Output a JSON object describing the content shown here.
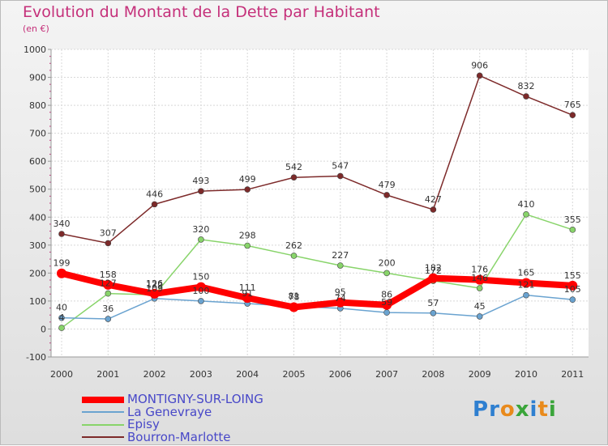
{
  "chart_data": {
    "type": "line",
    "title": "Evolution du Montant de la Dette par Habitant",
    "unit_label": "(en €)",
    "x": [
      "2000",
      "2001",
      "2002",
      "2003",
      "2004",
      "2005",
      "2006",
      "2007",
      "2008",
      "2009",
      "2010",
      "2011"
    ],
    "ylim": [
      -100,
      1000
    ],
    "yticks": [
      "-100",
      "0",
      "100",
      "200",
      "300",
      "400",
      "500",
      "600",
      "700",
      "800",
      "900",
      "1000"
    ],
    "grid": true,
    "legend_position": "bottom-left",
    "series": [
      {
        "name": "MONTIGNY-SUR-LOING",
        "color": "#ff0000",
        "values": [
          199,
          158,
          126,
          150,
          111,
          78,
          95,
          86,
          182,
          176,
          165,
          155
        ],
        "labels": [
          "199",
          "158",
          "126",
          "150",
          "111",
          "78",
          "95",
          "86",
          "182",
          "176",
          "165",
          "155"
        ]
      },
      {
        "name": "La Genevraye",
        "color": "#6aa3d0",
        "values": [
          40,
          36,
          109,
          100,
          91,
          81,
          74,
          59,
          57,
          45,
          121,
          105
        ],
        "labels": [
          "40",
          "36",
          "109",
          "100",
          "91",
          "81",
          "74",
          "59",
          "57",
          "45",
          "121",
          "105"
        ]
      },
      {
        "name": "Episy",
        "color": "#88d46a",
        "values": [
          4,
          127,
          122,
          320,
          298,
          262,
          227,
          200,
          172,
          146,
          410,
          355
        ],
        "labels": [
          "4",
          "127",
          "122",
          "320",
          "298",
          "262",
          "227",
          "200",
          "172",
          "146",
          "410",
          "355"
        ]
      },
      {
        "name": "Bourron-Marlotte",
        "color": "#7d2a2a",
        "values": [
          340,
          307,
          446,
          493,
          499,
          542,
          547,
          479,
          427,
          906,
          832,
          765
        ],
        "labels": [
          "340",
          "307",
          "446",
          "493",
          "499",
          "542",
          "547",
          "479",
          "427",
          "906",
          "832",
          "765"
        ]
      }
    ]
  },
  "branding": {
    "letters": [
      {
        "char": "P",
        "color": "#2e7fd0"
      },
      {
        "char": "r",
        "color": "#2e7fd0"
      },
      {
        "char": "o",
        "color": "#e98a1c"
      },
      {
        "char": "x",
        "color": "#3aa53a"
      },
      {
        "char": "i",
        "color": "#2e7fd0"
      },
      {
        "char": "t",
        "color": "#e98a1c"
      },
      {
        "char": "i",
        "color": "#3aa53a"
      }
    ]
  }
}
